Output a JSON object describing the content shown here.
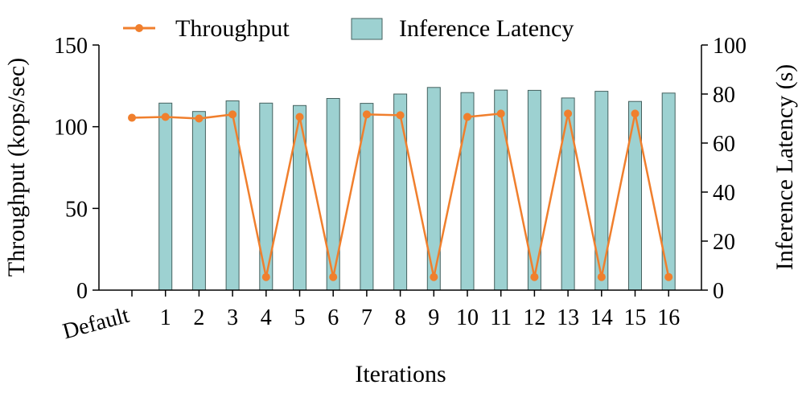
{
  "chart_data": {
    "type": "bar+line",
    "categories": [
      "Default",
      "1",
      "2",
      "3",
      "4",
      "5",
      "6",
      "7",
      "8",
      "9",
      "10",
      "11",
      "12",
      "13",
      "14",
      "15",
      "16"
    ],
    "xlabel": "Iterations",
    "ylabel_left": "Throughput (kops/sec)",
    "ylabel_right": "Inference Latency (s)",
    "ylim_left": [
      0,
      150
    ],
    "ylim_right": [
      0,
      100
    ],
    "yticks_left": [
      "0",
      "50",
      "100",
      "150"
    ],
    "yticks_right": [
      "0",
      "20",
      "40",
      "60",
      "80",
      "100"
    ],
    "grid": false,
    "legend_position": "top",
    "series": [
      {
        "name": "Throughput",
        "kind": "line",
        "axis": "left",
        "color": "#F07F2D",
        "values": [
          105.5,
          106,
          105,
          107.5,
          8,
          106,
          8,
          107.5,
          107,
          8,
          106,
          108,
          8,
          108,
          8,
          108,
          8
        ]
      },
      {
        "name": "Inference Latency",
        "kind": "bar",
        "axis": "right",
        "color": "#9DD1D1",
        "edge_color": "#45615F",
        "values": [
          null,
          76.3,
          72.9,
          77.2,
          76.3,
          75.3,
          78.2,
          76.2,
          80,
          82.7,
          80.6,
          81.6,
          81.5,
          78.4,
          81.1,
          77,
          80.4
        ]
      }
    ]
  }
}
